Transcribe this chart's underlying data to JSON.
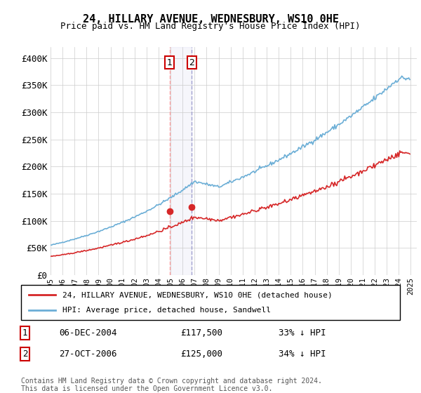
{
  "title": "24, HILLARY AVENUE, WEDNESBURY, WS10 0HE",
  "subtitle": "Price paid vs. HM Land Registry's House Price Index (HPI)",
  "legend_line1": "24, HILLARY AVENUE, WEDNESBURY, WS10 0HE (detached house)",
  "legend_line2": "HPI: Average price, detached house, Sandwell",
  "transaction1_date": "06-DEC-2004",
  "transaction1_price": "£117,500",
  "transaction1_hpi": "33% ↓ HPI",
  "transaction2_date": "27-OCT-2006",
  "transaction2_price": "£125,000",
  "transaction2_hpi": "34% ↓ HPI",
  "footer": "Contains HM Land Registry data © Crown copyright and database right 2024.\nThis data is licensed under the Open Government Licence v3.0.",
  "hpi_color": "#6baed6",
  "price_color": "#d62728",
  "marker_color": "#d62728",
  "yticks": [
    0,
    50000,
    100000,
    150000,
    200000,
    250000,
    300000,
    350000,
    400000
  ],
  "xlim_start": 1995.0,
  "xlim_end": 2025.5,
  "t1_x": 2004.917,
  "t1_y": 117500,
  "t2_x": 2006.75,
  "t2_y": 125000
}
